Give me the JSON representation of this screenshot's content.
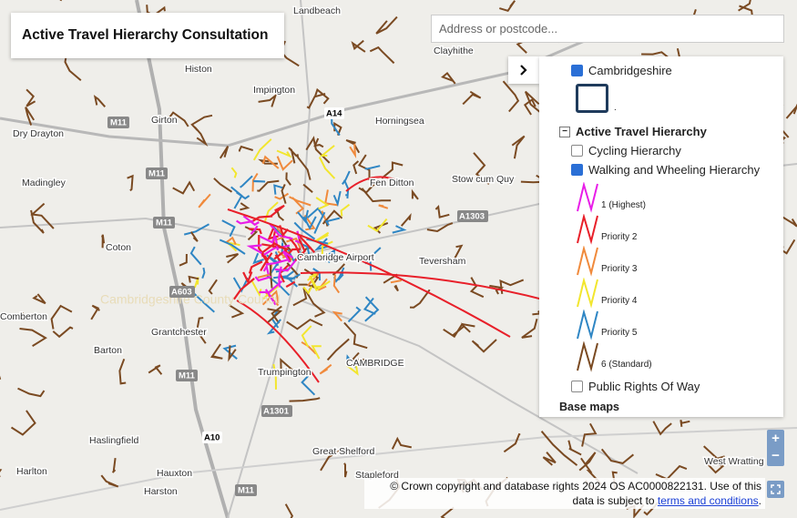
{
  "header": {
    "title": "Active Travel Hierarchy Consultation"
  },
  "search": {
    "placeholder": "Address or postcode..."
  },
  "map": {
    "places": [
      "Landbeach",
      "Clayhithe",
      "Histon",
      "Impington",
      "Girton",
      "Horningsea",
      "Dry Drayton",
      "Madingley",
      "Fen Ditton",
      "Stow cum Quy",
      "Coton",
      "Cambridge Airport",
      "Teversham",
      "Comberton",
      "Grantchester",
      "Barton",
      "CAMBRIDGE",
      "Trumpington",
      "Haslingfield",
      "Great Shelford",
      "Harlton",
      "Hauxton",
      "Harston",
      "Stapleford",
      "West Wratting"
    ],
    "roads": [
      "M11",
      "M11",
      "M11",
      "A14",
      "A603",
      "M11",
      "A10",
      "A1301",
      "A1303",
      "M11"
    ],
    "watermark": "Cambridgeshire County Council"
  },
  "layers": {
    "boundary": {
      "label": "Cambridgeshire",
      "checked": true,
      "swatch_label": ".",
      "swatch_color": "#1f3b5c"
    },
    "group": {
      "label": "Active Travel Hierarchy",
      "expanded": true
    },
    "cycling": {
      "label": "Cycling Hierarchy",
      "checked": false
    },
    "walking": {
      "label": "Walking and Wheeling Hierarchy",
      "checked": true
    },
    "legend": [
      {
        "label": "1 (Highest)",
        "color": "#e81ee8"
      },
      {
        "label": "Priority 2",
        "color": "#e8202a"
      },
      {
        "label": "Priority 3",
        "color": "#f08a3c"
      },
      {
        "label": "Priority 4",
        "color": "#f2e62e"
      },
      {
        "label": "Priority 5",
        "color": "#2f86c4"
      },
      {
        "label": "6 (Standard)",
        "color": "#7a4a22"
      }
    ],
    "prow": {
      "label": "Public Rights Of Way",
      "checked": false
    },
    "basemaps": "Base maps"
  },
  "zoom": {
    "in": "+",
    "out": "−"
  },
  "attribution": {
    "text": "© Crown copyright and database rights 2024 OS AC0000822131. Use of this data is subject to ",
    "link": "terms and conditions",
    "end": "."
  }
}
